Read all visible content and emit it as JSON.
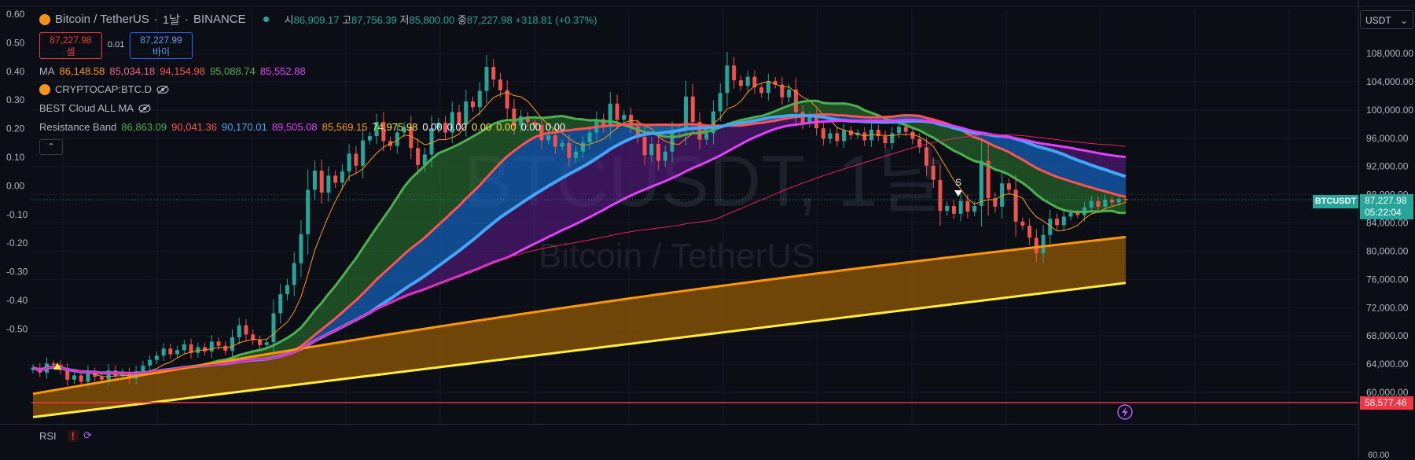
{
  "header": {
    "symbol": "Bitcoin / TetherUS",
    "interval": "1날",
    "exchange": "BINANCE",
    "o_label": "시",
    "o_value": "86,909.17",
    "h_label": "고",
    "h_value": "87,756.39",
    "l_label": "저",
    "l_value": "85,800.00",
    "c_label": "종",
    "c_value": "87,227.98",
    "change": "+318.81 (+0.37%)"
  },
  "trade": {
    "sell_price": "87,227.98",
    "sell_label": "셀",
    "spread": "0.01",
    "buy_price": "87,227.99",
    "buy_label": "바이"
  },
  "indicators": {
    "ma": {
      "label": "MA",
      "values": [
        "86,148.58",
        "85,034.18",
        "94,154.98",
        "95,088.74",
        "85,552.88"
      ],
      "colors": [
        "#ff9800",
        "#f06292",
        "#ff5252",
        "#4caf50",
        "#e040fb"
      ]
    },
    "btcd": {
      "label": "CRYPTOCAP:BTC.D"
    },
    "cloud": {
      "label": "BEST Cloud ALL MA"
    },
    "resistance": {
      "label": "Resistance Band",
      "values": [
        "86,863.09",
        "90,041.36",
        "90,170.01",
        "89,505.08",
        "85,569.15",
        "74,975.98",
        "0.00",
        "0.00",
        "0.00",
        "0.00",
        "0.00",
        "0.00"
      ],
      "colors": [
        "#4caf50",
        "#ff5252",
        "#42a5f5",
        "#e040fb",
        "#ff9800",
        "#ffeb3b",
        "#ffffff",
        "#ffffff",
        "#ffeb3b",
        "#ffeb3b",
        "#ffffff",
        "#ffffff"
      ]
    }
  },
  "left_axis": [
    "0.60",
    "0.50",
    "0.40",
    "0.30",
    "0.20",
    "0.10",
    "0.00",
    "-0.10",
    "-0.20",
    "-0.30",
    "-0.40",
    "-0.50"
  ],
  "right_axis": {
    "currency": "USDT",
    "ticks": [
      "108,000.00",
      "104,000.00",
      "100,000.00",
      "96,000.00",
      "92,000.00",
      "88,000.00",
      "84,000.00",
      "80,000.00",
      "76,000.00",
      "72,000.00",
      "68,000.00",
      "64,000.00",
      "60,000.00"
    ],
    "price_tag": "87,227.98",
    "countdown": "05:22:04",
    "symbol_tag": "BTCUSDT",
    "line_tag": "58,577.46",
    "rsi_tick": "60.00"
  },
  "watermark": {
    "main": "BTCUSDT, 1날",
    "sub": "Bitcoin / TetherUS"
  },
  "marks": {
    "sell_letter": "S"
  },
  "rsi": {
    "label": "RSI",
    "warn": "!"
  },
  "colors": {
    "bg": "#0b0e15",
    "up": "#26a69a",
    "down": "#ef5350",
    "grid": "#161a25"
  },
  "chart_data": {
    "type": "candlestick",
    "ylim": [
      58000,
      110000
    ],
    "closes": [
      63500,
      62800,
      64100,
      63900,
      63200,
      61800,
      62400,
      61500,
      62900,
      62200,
      61800,
      63100,
      62300,
      62800,
      61900,
      63000,
      63800,
      64600,
      65200,
      66200,
      65400,
      66000,
      66800,
      65600,
      66400,
      65800,
      67200,
      66600,
      65900,
      67800,
      69500,
      68200,
      67400,
      66700,
      67100,
      71200,
      73900,
      75200,
      78300,
      82400,
      88700,
      91400,
      88300,
      90700,
      89700,
      91300,
      93800,
      92100,
      95700,
      96300,
      98300,
      95600,
      94900,
      96800,
      97600,
      94600,
      92200,
      93700,
      97400,
      98200,
      96800,
      99700,
      97900,
      101200,
      100400,
      102700,
      106100,
      104300,
      102800,
      100200,
      97800,
      99100,
      98300,
      97900,
      95700,
      96400,
      94800,
      95300,
      93200,
      94100,
      95400,
      96800,
      98700,
      97600,
      100900,
      98600,
      99300,
      97700,
      96200,
      93600,
      95200,
      92800,
      94100,
      96900,
      97200,
      101900,
      98300,
      95800,
      96700,
      99800,
      102400,
      106300,
      104200,
      103400,
      104700,
      103200,
      102400,
      104100,
      103600,
      101800,
      102900,
      99700,
      98200,
      99100,
      97400,
      95900,
      96700,
      95600,
      97100,
      96400,
      96800,
      95700,
      97200,
      96300,
      95300,
      96700,
      97600,
      96900,
      95900,
      94700,
      92100,
      90100,
      85700,
      86400,
      85300,
      87100,
      85600,
      86400,
      92800,
      87500,
      86300,
      89600,
      88700,
      84200,
      83600,
      81900,
      79700,
      82300,
      84600,
      83700,
      84900,
      85400,
      85100,
      86200,
      87100,
      86300,
      87300,
      86900,
      87400,
      87228
    ]
  }
}
